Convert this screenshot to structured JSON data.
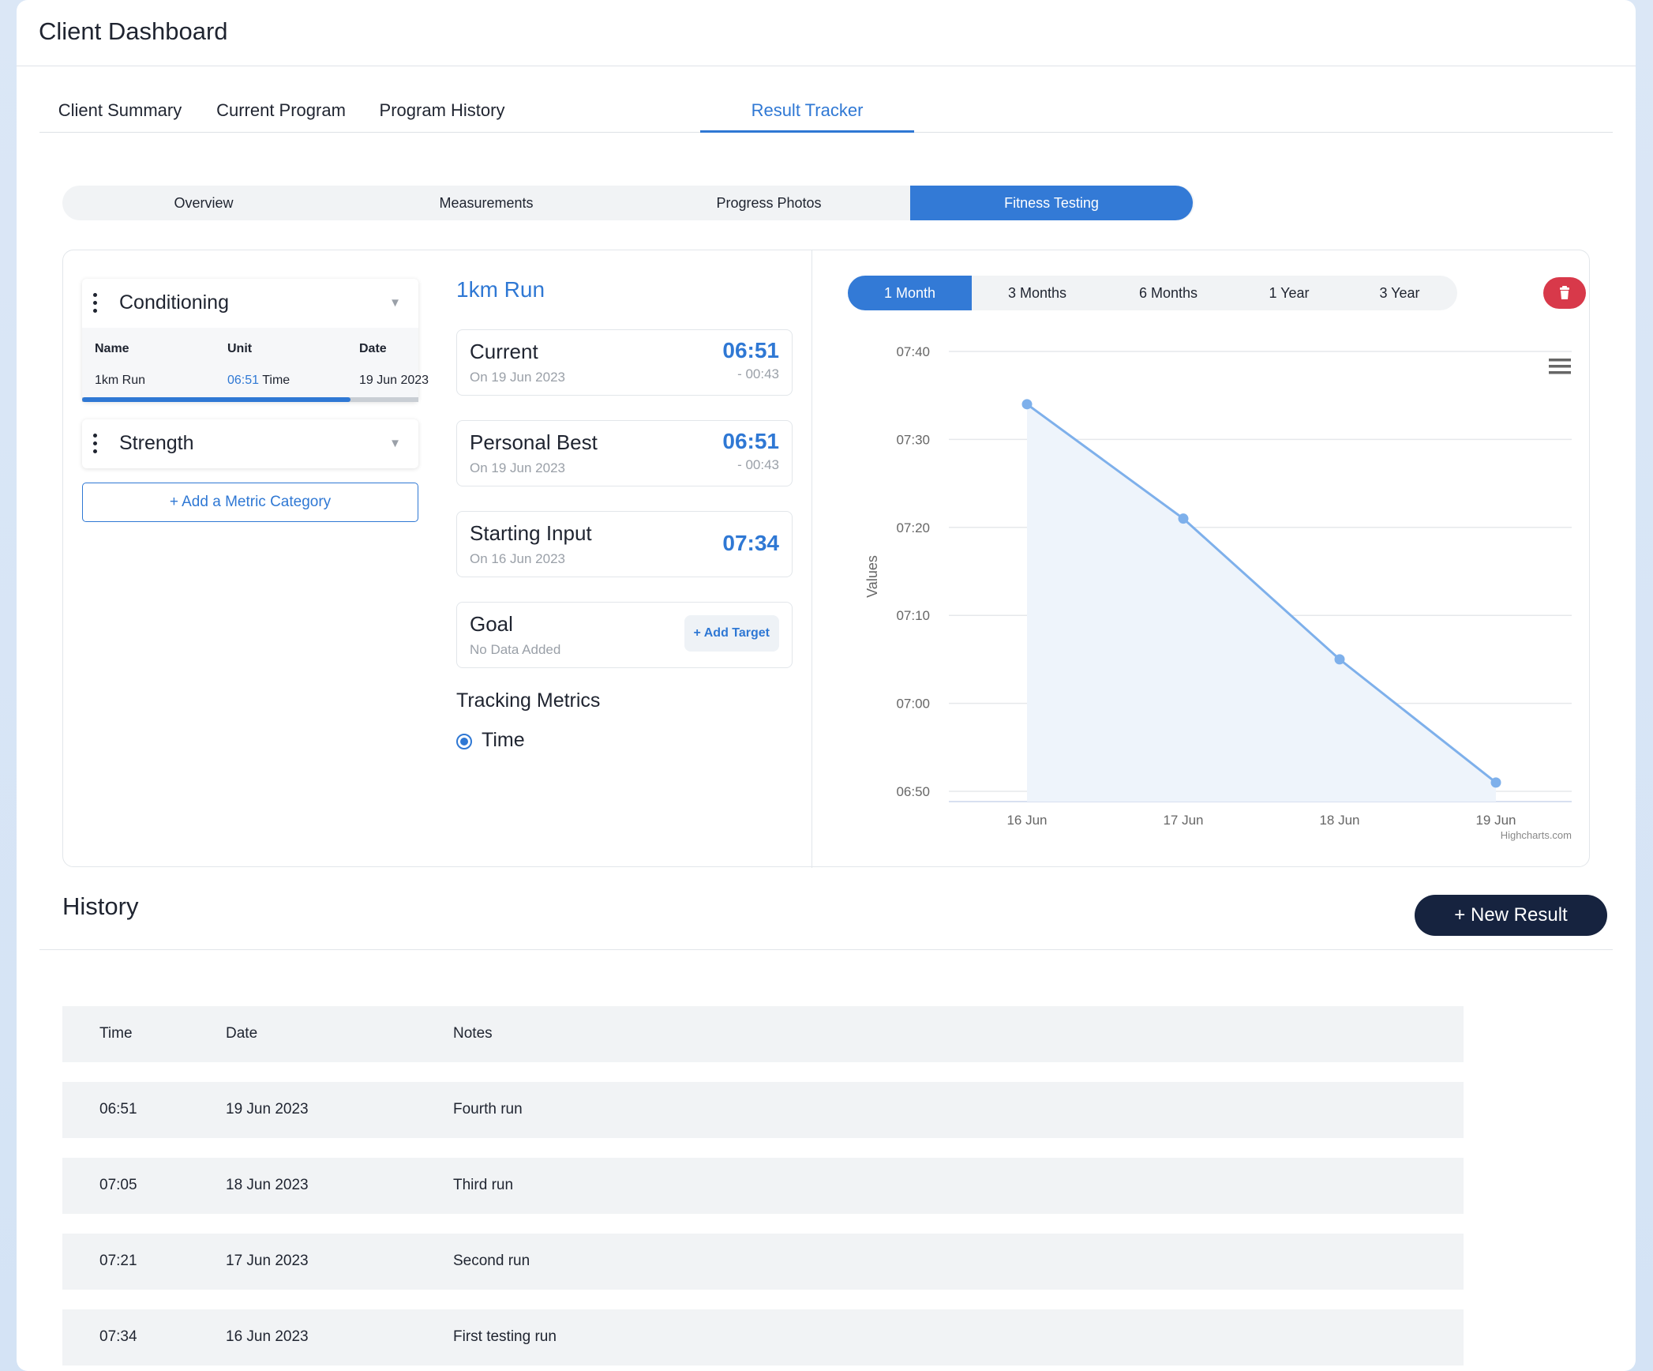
{
  "header": {
    "title": "Client Dashboard"
  },
  "main_tabs": [
    {
      "label": "Client Summary"
    },
    {
      "label": "Current Program"
    },
    {
      "label": "Program History"
    },
    {
      "label": "Result Tracker"
    }
  ],
  "sub_tabs": [
    {
      "label": "Overview"
    },
    {
      "label": "Measurements"
    },
    {
      "label": "Progress Photos"
    },
    {
      "label": "Fitness Testing"
    }
  ],
  "categories": [
    {
      "title": "Conditioning",
      "columns": [
        "Name",
        "Unit",
        "Date"
      ],
      "row": {
        "name": "1km Run",
        "unit_value": "06:51",
        "unit_label": "Time",
        "date": "19 Jun 2023"
      }
    },
    {
      "title": "Strength"
    }
  ],
  "add_category_label": "+ Add a Metric Category",
  "metric": {
    "title": "1km Run",
    "stats": [
      {
        "label": "Current",
        "sub": "On 19 Jun 2023",
        "value": "06:51",
        "diff": "- 00:43"
      },
      {
        "label": "Personal Best",
        "sub": "On 19 Jun 2023",
        "value": "06:51",
        "diff": "- 00:43"
      },
      {
        "label": "Starting Input",
        "sub": "On 16 Jun 2023",
        "value": "07:34"
      },
      {
        "label": "Goal",
        "sub": "No Data Added",
        "action": "+ Add Target"
      }
    ],
    "tracking_title": "Tracking Metrics",
    "tracking_option": "Time"
  },
  "range_buttons": [
    {
      "label": "1 Month"
    },
    {
      "label": "3 Months"
    },
    {
      "label": "6 Months"
    },
    {
      "label": "1 Year"
    },
    {
      "label": "3 Year"
    }
  ],
  "colors": {
    "accent": "#2f78d4",
    "delete": "#d8394a",
    "dark_button": "#16233f",
    "area_fill": "#eef4fb",
    "line": "#7eb0eb"
  },
  "chart_data": {
    "type": "area",
    "x": [
      "16 Jun",
      "17 Jun",
      "18 Jun",
      "19 Jun"
    ],
    "series": [
      {
        "values_seconds": [
          454,
          441,
          425,
          411
        ]
      }
    ],
    "ylabel": "Values",
    "ylim_seconds": [
      410,
      460
    ],
    "y_ticks": [
      "06:50",
      "07:00",
      "07:10",
      "07:20",
      "07:30",
      "07:40"
    ],
    "y_tick_seconds": [
      410,
      420,
      430,
      440,
      450,
      460
    ],
    "credit": "Highcharts.com",
    "grid": true,
    "legend": "none"
  },
  "history": {
    "title": "History",
    "new_button": "+  New Result",
    "columns": [
      "Time",
      "Date",
      "Notes"
    ],
    "rows": [
      {
        "time": "06:51",
        "date": "19 Jun 2023",
        "notes": "Fourth run"
      },
      {
        "time": "07:05",
        "date": "18 Jun 2023",
        "notes": "Third run"
      },
      {
        "time": "07:21",
        "date": "17 Jun 2023",
        "notes": "Second run"
      },
      {
        "time": "07:34",
        "date": "16 Jun 2023",
        "notes": "First testing run"
      }
    ]
  }
}
